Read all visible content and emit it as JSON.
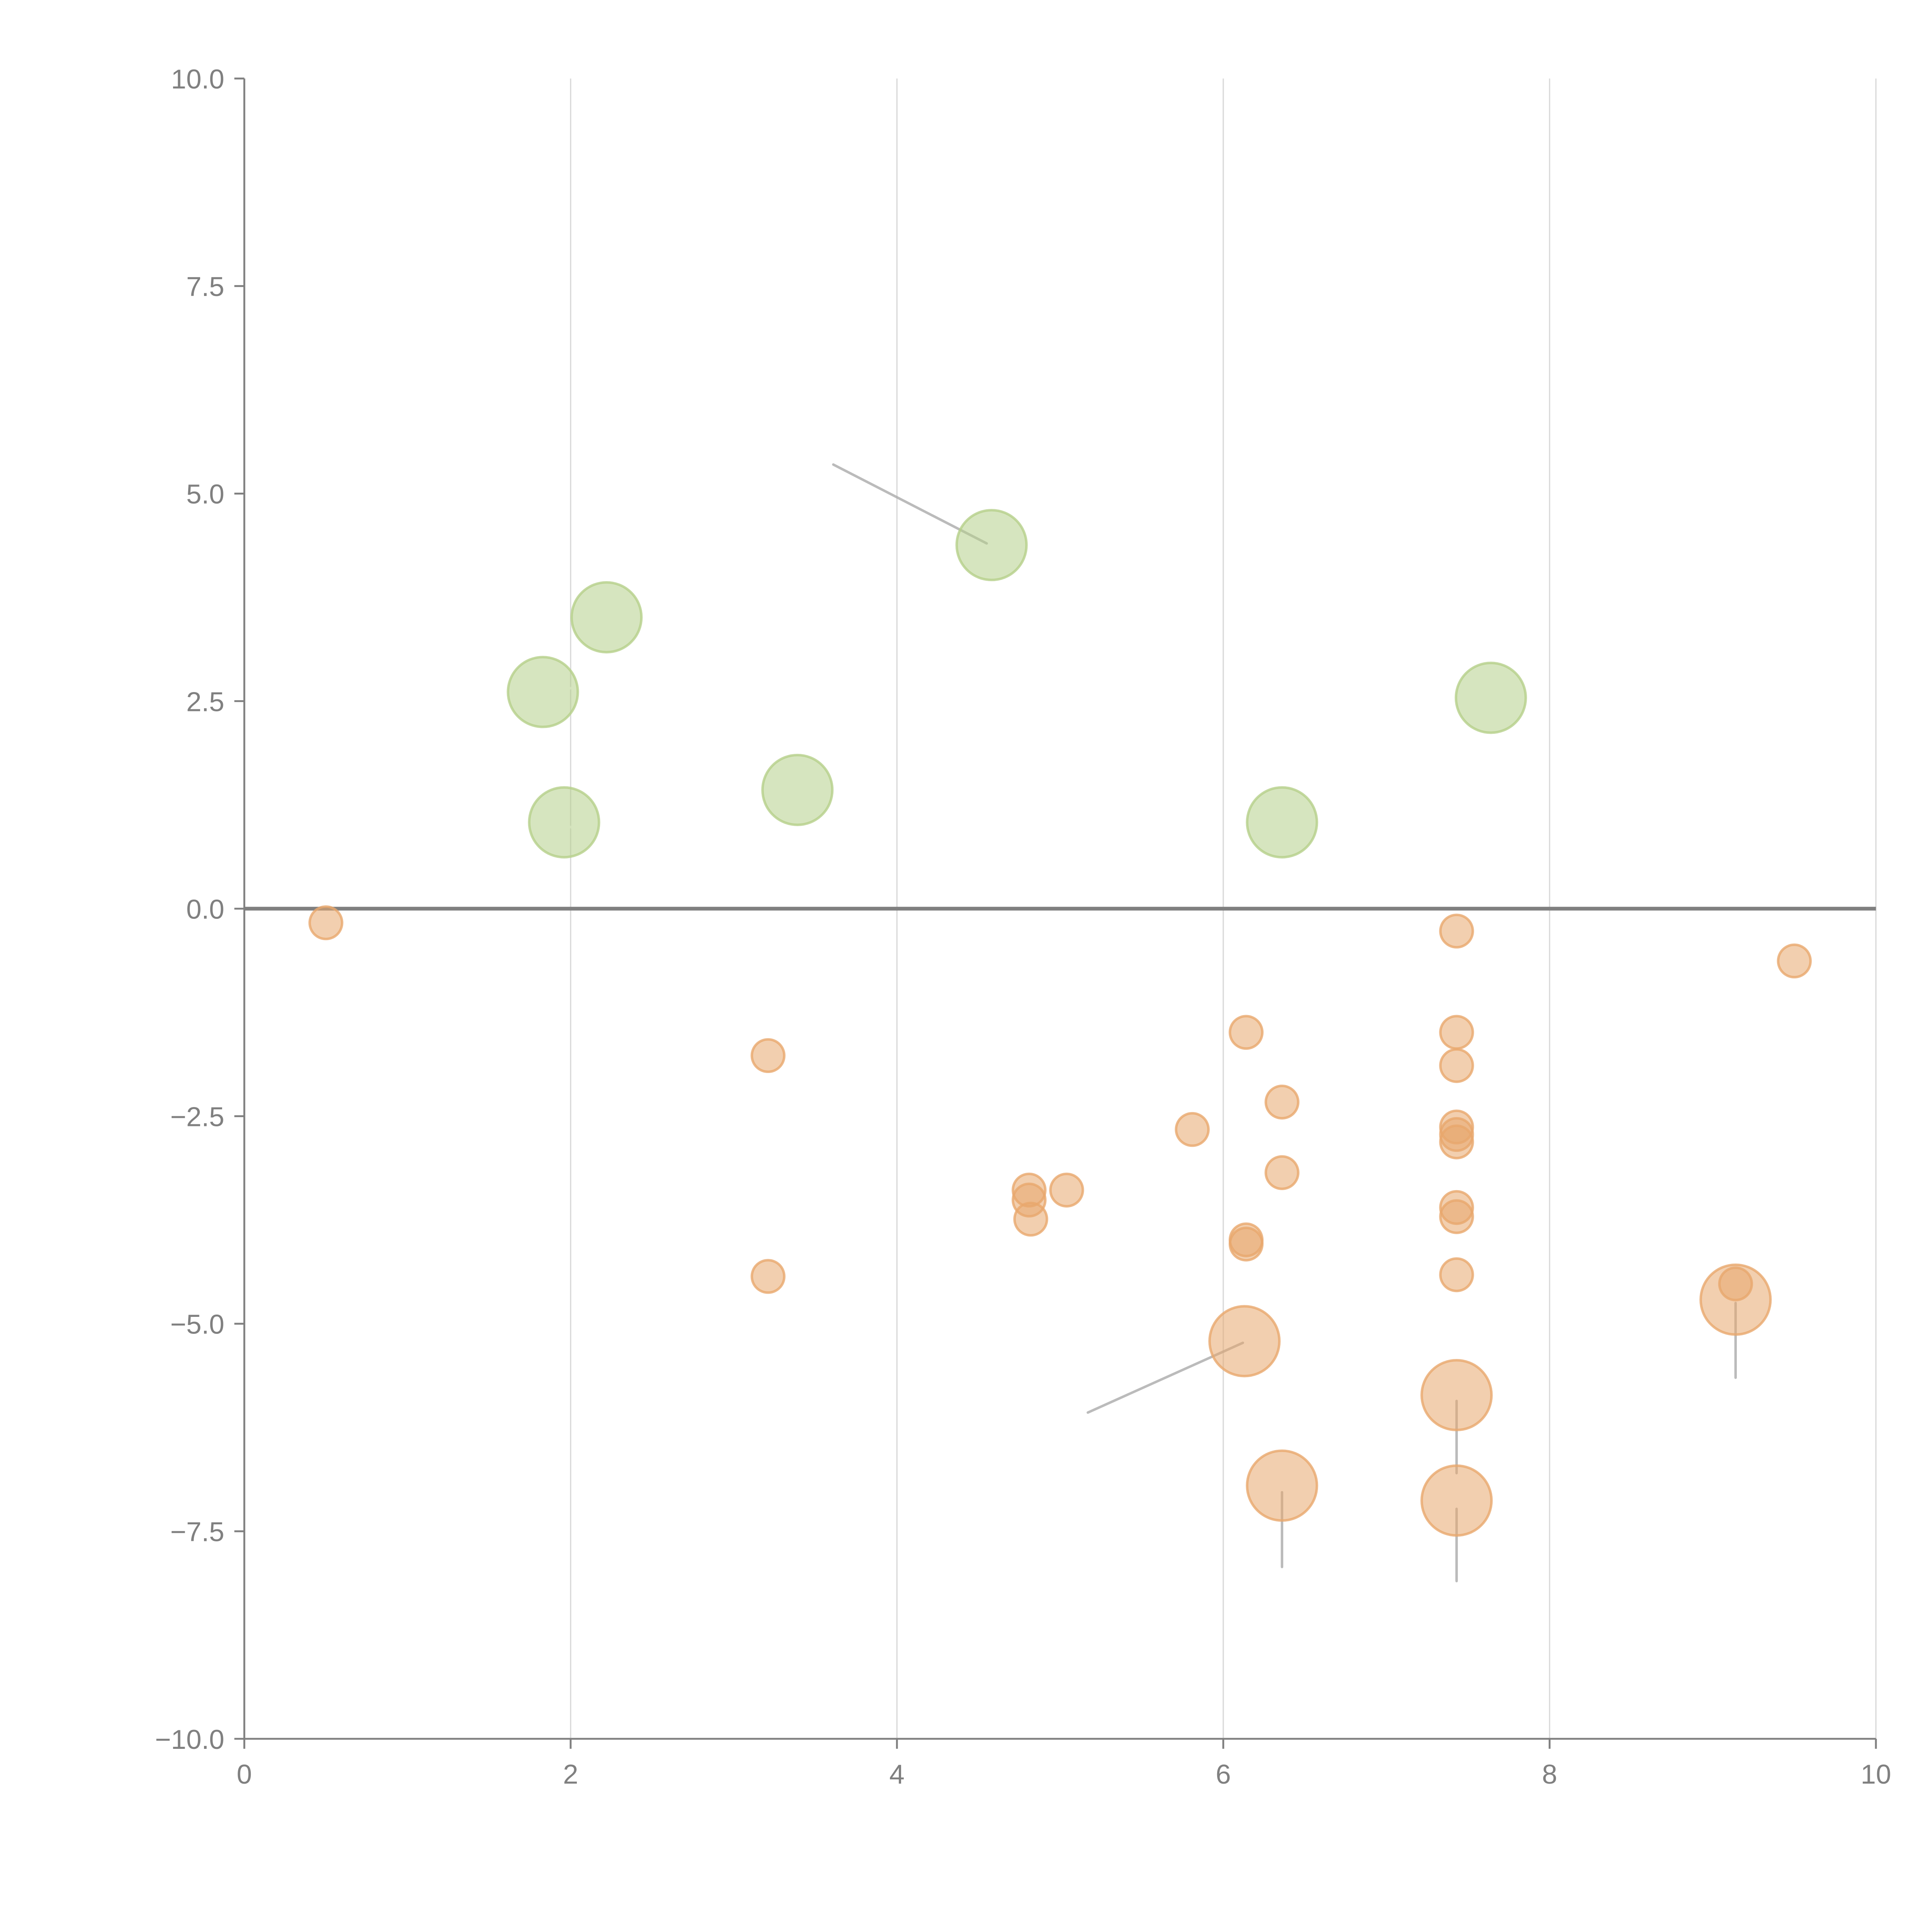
{
  "chart_data": {
    "type": "scatter",
    "title": "",
    "xlabel": "",
    "ylabel": "",
    "xlim": [
      0,
      10
    ],
    "ylim": [
      -10,
      10
    ],
    "xticks": [
      "0",
      "2",
      "4",
      "6",
      "8",
      "10"
    ],
    "xtick_values": [
      0,
      2,
      4,
      6,
      8,
      10
    ],
    "yticks": [
      "10.0",
      "7.5",
      "5.0",
      "2.5",
      "0.0",
      "−2.5",
      "−5.0",
      "−7.5",
      "−10.0"
    ],
    "ytick_values": [
      10,
      7.5,
      5,
      2.5,
      0,
      -2.5,
      -5,
      -7.5,
      -10
    ],
    "grid": "vertical",
    "zero_line": 0,
    "colors": {
      "positive": "#b5d08a",
      "negative": "#e8a76d",
      "axis": "#808080",
      "grid": "#d9d9d9",
      "leader": "#aaaaaa"
    },
    "series": [
      {
        "name": "positive",
        "size": "large",
        "points": [
          {
            "x": 1.83,
            "y": 2.61
          },
          {
            "x": 2.22,
            "y": 3.51
          },
          {
            "x": 1.96,
            "y": 1.04
          },
          {
            "x": 3.39,
            "y": 1.43
          },
          {
            "x": 4.58,
            "y": 4.38
          },
          {
            "x": 6.36,
            "y": 1.04
          },
          {
            "x": 7.64,
            "y": 2.54
          }
        ]
      },
      {
        "name": "negative-small",
        "size": "small",
        "points": [
          {
            "x": 0.5,
            "y": -0.17
          },
          {
            "x": 3.21,
            "y": -1.77
          },
          {
            "x": 3.21,
            "y": -4.43
          },
          {
            "x": 4.81,
            "y": -3.39
          },
          {
            "x": 4.81,
            "y": -3.51
          },
          {
            "x": 4.82,
            "y": -3.74
          },
          {
            "x": 5.04,
            "y": -3.39
          },
          {
            "x": 5.81,
            "y": -2.66
          },
          {
            "x": 6.14,
            "y": -1.49
          },
          {
            "x": 6.36,
            "y": -2.33
          },
          {
            "x": 6.36,
            "y": -3.18
          },
          {
            "x": 6.14,
            "y": -3.99
          },
          {
            "x": 6.14,
            "y": -4.04
          },
          {
            "x": 7.43,
            "y": -0.27
          },
          {
            "x": 7.43,
            "y": -1.49
          },
          {
            "x": 7.43,
            "y": -1.89
          },
          {
            "x": 7.43,
            "y": -2.63
          },
          {
            "x": 7.43,
            "y": -2.72
          },
          {
            "x": 7.43,
            "y": -2.81
          },
          {
            "x": 7.43,
            "y": -3.6
          },
          {
            "x": 7.43,
            "y": -3.71
          },
          {
            "x": 7.43,
            "y": -4.41
          },
          {
            "x": 9.14,
            "y": -4.52
          },
          {
            "x": 9.5,
            "y": -0.63
          }
        ]
      },
      {
        "name": "negative-large",
        "size": "large",
        "points": [
          {
            "x": 6.13,
            "y": -5.21
          },
          {
            "x": 6.36,
            "y": -6.95
          },
          {
            "x": 7.43,
            "y": -5.86
          },
          {
            "x": 7.43,
            "y": -7.13
          },
          {
            "x": 9.14,
            "y": -4.71
          }
        ]
      }
    ],
    "leaders": [
      {
        "from": [
          4.55,
          4.4
        ],
        "to": [
          3.61,
          5.35
        ],
        "color": "#aaaaaa"
      },
      {
        "from": [
          2.25,
          3.55
        ],
        "to": [
          2.42,
          3.7
        ],
        "color": "#ffffff"
      },
      {
        "from": [
          1.87,
          2.62
        ],
        "to": [
          2.05,
          2.67
        ],
        "color": "#ffffff"
      },
      {
        "from": [
          1.99,
          0.99
        ],
        "to": [
          2.15,
          0.87
        ],
        "color": "#ffffff"
      },
      {
        "from": [
          3.43,
          1.45
        ],
        "to": [
          3.6,
          1.58
        ],
        "color": "#ffffff"
      },
      {
        "from": [
          6.12,
          -5.23
        ],
        "to": [
          5.17,
          -6.07
        ],
        "color": "#aaaaaa"
      },
      {
        "from": [
          6.36,
          -7.03
        ],
        "to": [
          6.36,
          -7.93
        ],
        "color": "#aaaaaa"
      },
      {
        "from": [
          7.43,
          -5.93
        ],
        "to": [
          7.43,
          -6.8
        ],
        "color": "#aaaaaa"
      },
      {
        "from": [
          7.43,
          -7.23
        ],
        "to": [
          7.43,
          -8.1
        ],
        "color": "#aaaaaa"
      },
      {
        "from": [
          9.14,
          -4.75
        ],
        "to": [
          9.14,
          -5.65
        ],
        "color": "#aaaaaa"
      }
    ]
  }
}
